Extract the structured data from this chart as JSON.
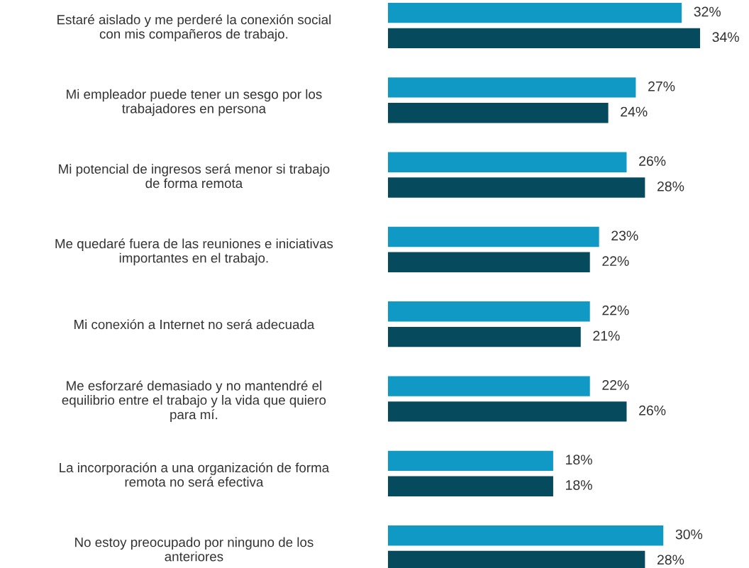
{
  "chart_data": {
    "type": "bar",
    "orientation": "horizontal",
    "tick_labels": "y",
    "categories": [
      "Estaré aislado y me perderé la conexión social\ncon mis compañeros de trabajo.",
      "Mi empleador puede tener un sesgo por los\ntrabajadores en persona",
      "Mi potencial de ingresos será menor si trabajo\nde forma remota",
      "Me quedaré fuera de las reuniones e iniciativas\nimportantes en el trabajo.",
      "Mi conexión a Internet no será adecuada",
      "Me esforzaré demasiado y no mantendré el\nequilibrio entre el trabajo y la vida que quiero\npara mí.",
      "La incorporación a una organización de forma\nremota no será efectiva",
      "No estoy preocupado por ninguno de los\nanteriores"
    ],
    "series": [
      {
        "color": "#1199c6",
        "values": [
          32,
          27,
          26,
          23,
          22,
          22,
          18,
          30
        ],
        "value_labels": [
          "32%",
          "27%",
          "26%",
          "23%",
          "22%",
          "22%",
          "18%",
          "30%"
        ]
      },
      {
        "color": "#064a5e",
        "values": [
          34,
          24,
          28,
          22,
          21,
          26,
          18,
          28
        ],
        "value_labels": [
          "34%",
          "24%",
          "28%",
          "22%",
          "21%",
          "26%",
          "18%",
          "28%"
        ]
      }
    ]
  }
}
